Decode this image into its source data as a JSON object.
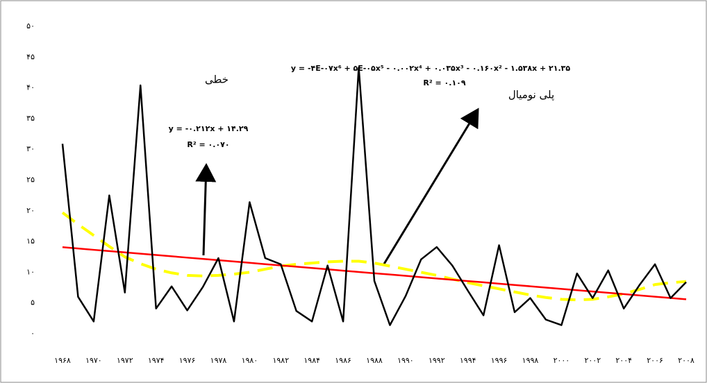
{
  "chart_data": {
    "type": "line",
    "categories": [
      "۱۹۶۸",
      null,
      "۱۹۷۰",
      null,
      "۱۹۷۲",
      null,
      "۱۹۷۴",
      null,
      "۱۹۷۶",
      null,
      "۱۹۷۸",
      null,
      "۱۹۸۰",
      null,
      "۱۹۸۲",
      null,
      "۱۹۸۴",
      null,
      "۱۹۸۶",
      null,
      "۱۹۸۸",
      null,
      "۱۹۹۰",
      null,
      "۱۹۹۲",
      null,
      "۱۹۹۴",
      null,
      "۱۹۹۶",
      null,
      "۱۹۹۸",
      null,
      "۲۰۰۰",
      null,
      "۲۰۰۲",
      null,
      "۲۰۰۴",
      null,
      "۲۰۰۶",
      null,
      "۲۰۰۸"
    ],
    "series": [
      {
        "color": "#000000",
        "style": "solid",
        "values": [
          30.9,
          6.0,
          2.0,
          22.5,
          6.7,
          40.4,
          4.1,
          7.7,
          3.8,
          7.6,
          12.3,
          2.0,
          21.4,
          12.3,
          11.3,
          3.7,
          2.0,
          11.1,
          2.0,
          43.3,
          8.6,
          1.4,
          6.1,
          12.1,
          14.1,
          11.1,
          7.0,
          3.0,
          14.4,
          3.5,
          5.8,
          2.3,
          1.4,
          9.8,
          5.8,
          10.3,
          4.1,
          7.9,
          11.3,
          5.8,
          8.4
        ]
      },
      {
        "color": "#ff0000",
        "style": "solid",
        "values": [
          14.08,
          13.87,
          13.65,
          13.44,
          13.23,
          13.02,
          12.81,
          12.6,
          12.38,
          12.17,
          11.96,
          11.75,
          11.54,
          11.32,
          11.11,
          10.9,
          10.69,
          10.48,
          10.26,
          10.05,
          9.84,
          9.63,
          9.42,
          9.2,
          8.99,
          8.78,
          8.57,
          8.36,
          8.14,
          7.93,
          7.72,
          7.51,
          7.3,
          7.08,
          6.87,
          6.66,
          6.45,
          6.24,
          6.02,
          5.81,
          5.6
        ]
      },
      {
        "color": "#ffff00",
        "style": "dashed",
        "values": [
          19.7,
          17.8,
          16.0,
          14.2,
          12.5,
          11.4,
          10.5,
          9.9,
          9.5,
          9.4,
          9.5,
          9.7,
          10.0,
          10.5,
          11.0,
          11.3,
          11.5,
          11.7,
          11.8,
          11.8,
          11.5,
          11.0,
          10.5,
          10.0,
          9.5,
          8.9,
          8.3,
          7.8,
          7.3,
          6.8,
          6.3,
          5.9,
          5.6,
          5.5,
          5.6,
          6.0,
          6.5,
          7.2,
          8.0,
          8.3,
          8.5
        ]
      }
    ],
    "ylim": [
      0,
      50
    ],
    "yticks": [
      {
        "value": 0,
        "label": "۰"
      },
      {
        "value": 5,
        "label": "۵"
      },
      {
        "value": 10,
        "label": "۱۰"
      },
      {
        "value": 15,
        "label": "۱۵"
      },
      {
        "value": 20,
        "label": "۲۰"
      },
      {
        "value": 25,
        "label": "۲۵"
      },
      {
        "value": 30,
        "label": "۳۰"
      },
      {
        "value": 35,
        "label": "۳۵"
      },
      {
        "value": 40,
        "label": "۴۰"
      },
      {
        "value": 45,
        "label": "۴۵"
      },
      {
        "value": 50,
        "label": "۵۰"
      }
    ],
    "annotations": [
      "خطی",
      "y = -۰.۲۱۲x + ۱۴.۲۹",
      "R² = ۰.۰۷۰",
      "y = -۴E-۰۷x⁶ + ۵E-۰۵x⁵ - ۰.۰۰۲x⁴ + ۰.۰۳۵x³ - ۰.۱۶۰x² - ۱.۵۳۸x + ۲۱.۳۵",
      "R² = ۰.۱۰۹",
      "پلی نومیال"
    ]
  }
}
